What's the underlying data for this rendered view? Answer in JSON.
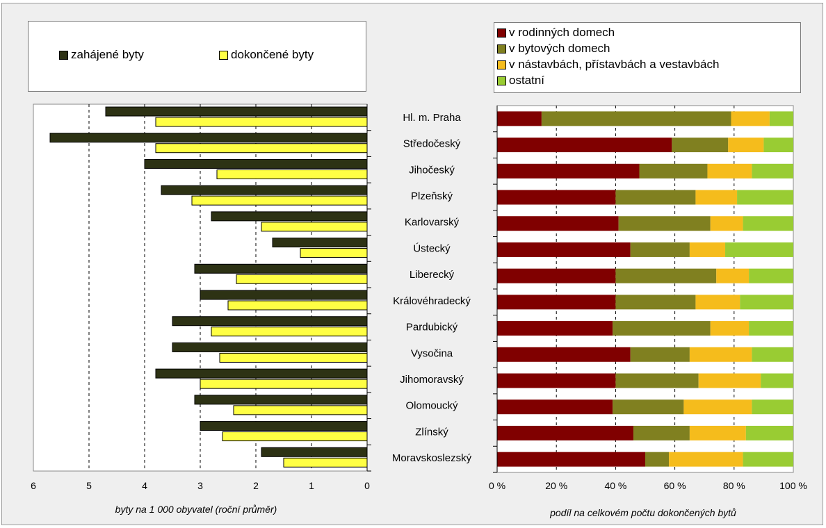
{
  "legend_left": {
    "items": [
      {
        "label": "zahájené byty",
        "color": "#2d3214"
      },
      {
        "label": "dokončené byty",
        "color": "#ffff44"
      }
    ]
  },
  "legend_right": {
    "items": [
      {
        "label": "v rodinných domech",
        "color": "#800000"
      },
      {
        "label": "v bytových domech",
        "color": "#808020"
      },
      {
        "label": "v nástavbách, přístavbách a vestavbách",
        "color": "#f5bc1c"
      },
      {
        "label": "ostatní",
        "color": "#99cc33"
      }
    ]
  },
  "chart_data": [
    {
      "type": "bar",
      "orientation": "horizontal",
      "x_reversed": true,
      "xlabel": "byty na 1 000 obyvatel (roční průměr)",
      "xlim": [
        0,
        6
      ],
      "xticks": [
        "6",
        "5",
        "4",
        "3",
        "2",
        "1",
        "0"
      ],
      "grid": "dashed vertical at 1-5",
      "categories": [
        "Hl. m. Praha",
        "Středočeský",
        "Jihočeský",
        "Plzeňský",
        "Karlovarský",
        "Ústecký",
        "Liberecký",
        "Královéhradecký",
        "Pardubický",
        "Vysočina",
        "Jihomoravský",
        "Olomoucký",
        "Zlínský",
        "Moravskoslezský"
      ],
      "series": [
        {
          "name": "zahájené byty",
          "color": "#2d3214",
          "values": [
            4.7,
            5.7,
            4.0,
            3.7,
            2.8,
            1.7,
            3.1,
            3.0,
            3.5,
            3.5,
            3.8,
            3.1,
            3.0,
            1.9
          ]
        },
        {
          "name": "dokončené byty",
          "color": "#ffff44",
          "values": [
            3.8,
            3.8,
            2.7,
            3.15,
            1.9,
            1.2,
            2.35,
            2.5,
            2.8,
            2.65,
            3.0,
            2.4,
            2.6,
            1.5
          ]
        }
      ]
    },
    {
      "type": "bar",
      "orientation": "horizontal",
      "stacked": true,
      "percent": true,
      "xlabel": "podíl na celkovém počtu dokončených bytů",
      "xticks": [
        "0 %",
        "20 %",
        "40 %",
        "60 %",
        "80 %",
        "100 %"
      ],
      "categories": [
        "Hl. m. Praha",
        "Středočeský",
        "Jihočeský",
        "Plzeňský",
        "Karlovarský",
        "Ústecký",
        "Liberecký",
        "Královéhradecký",
        "Pardubický",
        "Vysočina",
        "Jihomoravský",
        "Olomoucký",
        "Zlínský",
        "Moravskoslezský"
      ],
      "series": [
        {
          "name": "v rodinných domech",
          "color": "#800000",
          "values": [
            15,
            59,
            48,
            40,
            41,
            45,
            40,
            40,
            39,
            45,
            40,
            39,
            46,
            50
          ]
        },
        {
          "name": "v bytových domech",
          "color": "#808020",
          "values": [
            64,
            19,
            23,
            27,
            31,
            20,
            34,
            27,
            33,
            20,
            28,
            24,
            19,
            8
          ]
        },
        {
          "name": "v nástavbách, přístavbách a vestavbách",
          "color": "#f5bc1c",
          "values": [
            13,
            12,
            15,
            14,
            11,
            12,
            11,
            15,
            13,
            21,
            21,
            23,
            19,
            25
          ]
        },
        {
          "name": "ostatní",
          "color": "#99cc33",
          "values": [
            8,
            10,
            14,
            19,
            17,
            23,
            15,
            18,
            15,
            14,
            11,
            14,
            16,
            17
          ]
        }
      ]
    }
  ]
}
